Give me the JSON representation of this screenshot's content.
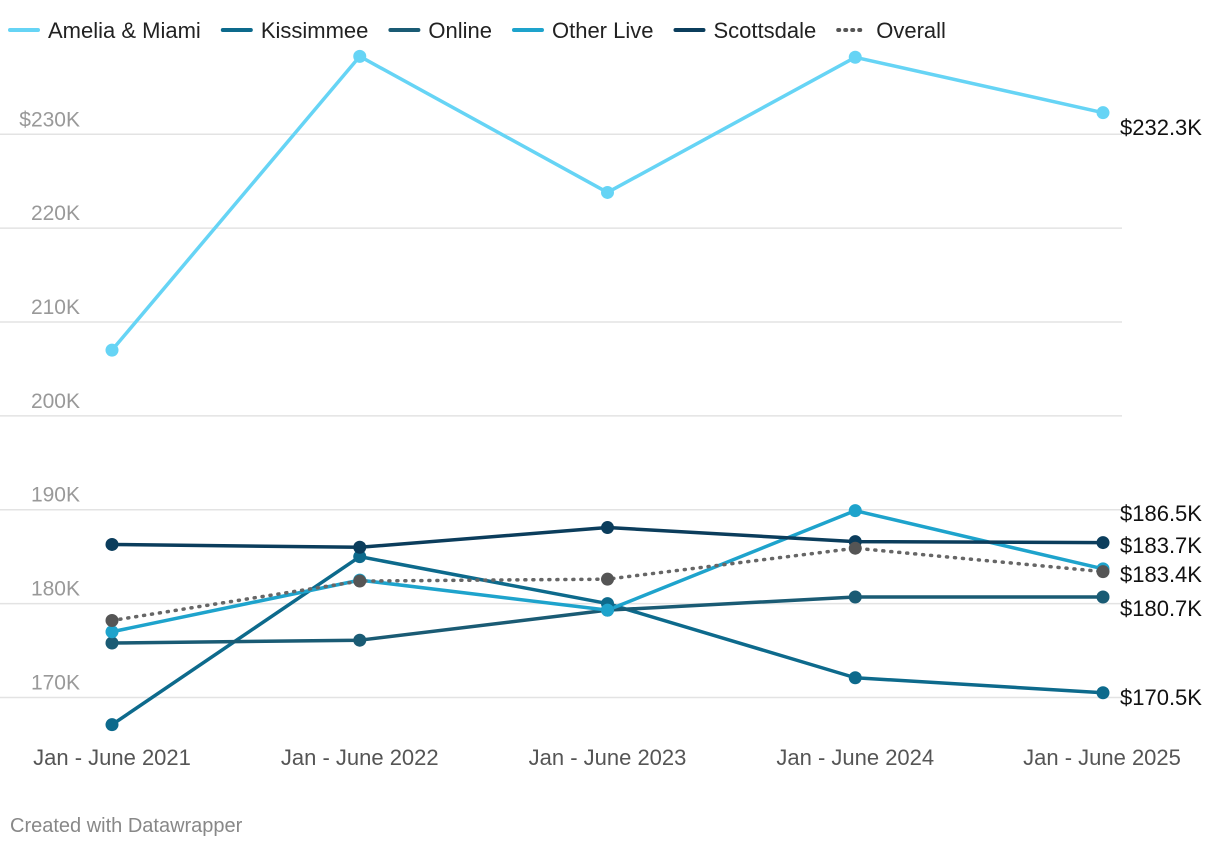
{
  "chart_data": {
    "type": "line",
    "x": [
      "Jan - June 2021",
      "Jan - June 2022",
      "Jan - June 2023",
      "Jan - June 2024",
      "Jan - June 2025"
    ],
    "ylim": [
      166000,
      241000
    ],
    "yticks": [
      {
        "value": 170000,
        "label": "170K"
      },
      {
        "value": 180000,
        "label": "180K"
      },
      {
        "value": 190000,
        "label": "190K"
      },
      {
        "value": 200000,
        "label": "200K"
      },
      {
        "value": 210000,
        "label": "210K"
      },
      {
        "value": 220000,
        "label": "220K"
      },
      {
        "value": 230000,
        "label": "$230K"
      }
    ],
    "grid": true,
    "legend_position": "top",
    "series": [
      {
        "name": "Amelia & Miami",
        "color": "#66d4f5",
        "dotted": false,
        "values": [
          207000,
          238300,
          223800,
          238200,
          232300
        ],
        "end_label": "$232.3K"
      },
      {
        "name": "Kissimmee",
        "color": "#0d6a8c",
        "dotted": false,
        "values": [
          167100,
          185000,
          180000,
          172100,
          170500
        ],
        "end_label": "$170.5K"
      },
      {
        "name": "Online",
        "color": "#1a5b74",
        "dotted": false,
        "values": [
          175800,
          176100,
          179300,
          180700,
          180700
        ],
        "end_label": "$180.7K"
      },
      {
        "name": "Other Live",
        "color": "#1ea3cc",
        "dotted": false,
        "values": [
          177000,
          182500,
          179300,
          189900,
          183700
        ],
        "end_label": "$183.7K"
      },
      {
        "name": "Scottsdale",
        "color": "#0b3d5c",
        "dotted": false,
        "values": [
          186300,
          186000,
          188100,
          186600,
          186500
        ],
        "end_label": "$186.5K"
      },
      {
        "name": "Overall",
        "color": "#666666",
        "dotted": true,
        "values": [
          178200,
          182400,
          182600,
          185900,
          183400
        ],
        "end_label": "$183.4K"
      }
    ]
  },
  "credit": "Created with Datawrapper"
}
